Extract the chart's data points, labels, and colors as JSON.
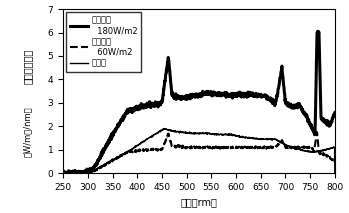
{
  "xlabel": "波長（rm）",
  "ylabel_line1": "分光放射照度",
  "ylabel_line2": "（W/m２/nm）",
  "xlim": [
    250,
    800
  ],
  "ylim": [
    0,
    7
  ],
  "xticks": [
    250,
    300,
    350,
    400,
    450,
    500,
    550,
    600,
    650,
    700,
    750,
    800
  ],
  "yticks": [
    0,
    1,
    2,
    3,
    4,
    5,
    6,
    7
  ],
  "legend_entries": [
    {
      "label1": "キセノン",
      "label2": "180W/m2",
      "linestyle": "solid",
      "linewidth": 2.2,
      "color": "#000000"
    },
    {
      "label1": "キセノン",
      "label2": "60W/m2",
      "linestyle": "dashed",
      "linewidth": 1.5,
      "color": "#000000"
    },
    {
      "label1": "太陽光",
      "label2": "",
      "linestyle": "solid",
      "linewidth": 1.0,
      "color": "#000000"
    }
  ],
  "background_color": "#ffffff",
  "font_size": 7,
  "tick_font_size": 6.5
}
